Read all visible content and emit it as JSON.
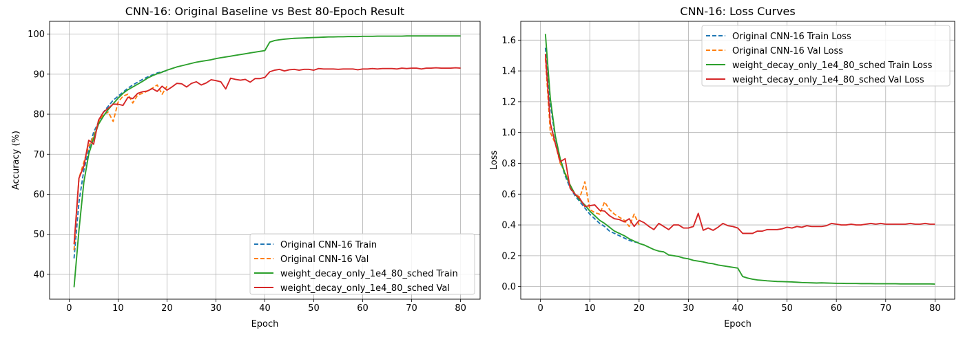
{
  "chart_data": [
    {
      "type": "line",
      "title": "CNN-16: Original Baseline vs Best 80-Epoch Result",
      "xlabel": "Epoch",
      "ylabel": "Accuracy (%)",
      "xlim": [
        -4,
        84
      ],
      "ylim": [
        33.8,
        103.2
      ],
      "xticks": [
        0,
        10,
        20,
        30,
        40,
        50,
        60,
        70,
        80
      ],
      "yticks": [
        40,
        50,
        60,
        70,
        80,
        90,
        100
      ],
      "grid": true,
      "legend_position": "lower-right",
      "series": [
        {
          "name": "Original CNN-16 Train",
          "color": "#1f77b4",
          "dash": true,
          "x": [
            1,
            2,
            3,
            4,
            5,
            6,
            7,
            8,
            9,
            10,
            11,
            12,
            13,
            14,
            15,
            16,
            17,
            18,
            19,
            20
          ],
          "y": [
            44,
            58,
            66,
            71,
            75.5,
            78,
            80.5,
            82,
            83.5,
            84.5,
            85.5,
            86.5,
            87.3,
            88,
            88.7,
            89.3,
            89.8,
            90.3,
            90.6,
            90.9
          ]
        },
        {
          "name": "Original CNN-16 Val",
          "color": "#ff7f0e",
          "dash": true,
          "x": [
            1,
            2,
            3,
            4,
            5,
            6,
            7,
            8,
            9,
            10,
            11,
            12,
            13,
            14,
            15,
            16,
            17,
            18,
            19,
            20
          ],
          "y": [
            46,
            64,
            68,
            72,
            74.5,
            78,
            80,
            80.5,
            78.2,
            83,
            84.5,
            85,
            82.8,
            84.8,
            85.2,
            85.8,
            86.5,
            87.3,
            85,
            87
          ]
        },
        {
          "name": "weight_decay_only_1e4_80_sched Train",
          "color": "#2ca02c",
          "dash": false,
          "x": [
            1,
            2,
            3,
            4,
            5,
            6,
            7,
            8,
            9,
            10,
            11,
            12,
            13,
            14,
            15,
            16,
            17,
            18,
            19,
            20,
            21,
            22,
            23,
            24,
            25,
            26,
            27,
            28,
            29,
            30,
            31,
            32,
            33,
            34,
            35,
            36,
            37,
            38,
            39,
            40,
            41,
            42,
            43,
            44,
            45,
            46,
            47,
            48,
            49,
            50,
            51,
            52,
            53,
            54,
            55,
            56,
            57,
            58,
            59,
            60,
            61,
            62,
            63,
            64,
            65,
            66,
            67,
            68,
            69,
            70,
            71,
            72,
            73,
            74,
            75,
            76,
            77,
            78,
            79,
            80
          ],
          "y": [
            36.8,
            51,
            63,
            70,
            74,
            77.5,
            79.5,
            81.2,
            82.6,
            84,
            85.2,
            86.1,
            86.8,
            87.5,
            88.2,
            89,
            89.6,
            90.1,
            90.5,
            91,
            91.4,
            91.8,
            92.1,
            92.4,
            92.7,
            93,
            93.2,
            93.4,
            93.6,
            93.9,
            94.1,
            94.3,
            94.5,
            94.7,
            94.9,
            95.1,
            95.3,
            95.5,
            95.7,
            95.9,
            98,
            98.4,
            98.6,
            98.75,
            98.85,
            98.95,
            99,
            99.05,
            99.1,
            99.15,
            99.2,
            99.25,
            99.3,
            99.3,
            99.35,
            99.35,
            99.4,
            99.4,
            99.4,
            99.45,
            99.45,
            99.45,
            99.5,
            99.5,
            99.5,
            99.5,
            99.5,
            99.5,
            99.55,
            99.55,
            99.55,
            99.55,
            99.55,
            99.55,
            99.55,
            99.55,
            99.55,
            99.55,
            99.55,
            99.55
          ]
        },
        {
          "name": "weight_decay_only_1e4_80_sched Val",
          "color": "#d62728",
          "dash": false,
          "x": [
            1,
            2,
            3,
            4,
            5,
            6,
            7,
            8,
            9,
            10,
            11,
            12,
            13,
            14,
            15,
            16,
            17,
            18,
            19,
            20,
            21,
            22,
            23,
            24,
            25,
            26,
            27,
            28,
            29,
            30,
            31,
            32,
            33,
            34,
            35,
            36,
            37,
            38,
            39,
            40,
            41,
            42,
            43,
            44,
            45,
            46,
            47,
            48,
            49,
            50,
            51,
            52,
            53,
            54,
            55,
            56,
            57,
            58,
            59,
            60,
            61,
            62,
            63,
            64,
            65,
            66,
            67,
            68,
            69,
            70,
            71,
            72,
            73,
            74,
            75,
            76,
            77,
            78,
            79,
            80
          ],
          "y": [
            47.5,
            64,
            67,
            73.5,
            72.5,
            78.5,
            80.5,
            81.5,
            82.5,
            82.5,
            82.2,
            84.2,
            83.9,
            85.2,
            85.6,
            85.8,
            86.4,
            85.7,
            87,
            86,
            86.8,
            87.7,
            87.6,
            86.8,
            87.7,
            88.1,
            87.3,
            87.8,
            88.6,
            88.4,
            88.1,
            86.3,
            89,
            88.7,
            88.5,
            88.7,
            88,
            88.9,
            88.9,
            89.2,
            90.6,
            91,
            91.2,
            90.8,
            91.1,
            91.2,
            91,
            91.2,
            91.2,
            91,
            91.4,
            91.3,
            91.3,
            91.3,
            91.2,
            91.3,
            91.3,
            91.3,
            91.1,
            91.3,
            91.3,
            91.4,
            91.3,
            91.4,
            91.4,
            91.4,
            91.3,
            91.5,
            91.4,
            91.5,
            91.5,
            91.3,
            91.5,
            91.5,
            91.6,
            91.5,
            91.5,
            91.5,
            91.6,
            91.5
          ]
        }
      ]
    },
    {
      "type": "line",
      "title": "CNN-16: Loss Curves",
      "xlabel": "Epoch",
      "ylabel": "Loss",
      "xlim": [
        -4,
        84
      ],
      "ylim": [
        -0.082,
        1.722
      ],
      "xticks": [
        0,
        10,
        20,
        30,
        40,
        50,
        60,
        70,
        80
      ],
      "yticks": [
        0.0,
        0.2,
        0.4,
        0.6,
        0.8,
        1.0,
        1.2,
        1.4,
        1.6
      ],
      "ytick_labels": [
        "0.0",
        "0.2",
        "0.4",
        "0.6",
        "0.8",
        "1.0",
        "1.2",
        "1.4",
        "1.6"
      ],
      "grid": true,
      "legend_position": "upper-right",
      "series": [
        {
          "name": "Original CNN-16 Train Loss",
          "color": "#1f77b4",
          "dash": true,
          "x": [
            1,
            2,
            3,
            4,
            5,
            6,
            7,
            8,
            9,
            10,
            11,
            12,
            13,
            14,
            15,
            16,
            17,
            18,
            19,
            20
          ],
          "y": [
            1.55,
            1.18,
            0.97,
            0.82,
            0.72,
            0.64,
            0.59,
            0.55,
            0.51,
            0.47,
            0.44,
            0.41,
            0.39,
            0.36,
            0.345,
            0.33,
            0.315,
            0.3,
            0.29,
            0.285
          ]
        },
        {
          "name": "Original CNN-16 Val Loss",
          "color": "#ff7f0e",
          "dash": true,
          "x": [
            1,
            2,
            3,
            4,
            5,
            6,
            7,
            8,
            9,
            10,
            11,
            12,
            13,
            14,
            15,
            16,
            17,
            18,
            19,
            20
          ],
          "y": [
            1.48,
            1.0,
            0.93,
            0.8,
            0.74,
            0.66,
            0.6,
            0.58,
            0.68,
            0.5,
            0.48,
            0.47,
            0.55,
            0.5,
            0.47,
            0.45,
            0.43,
            0.39,
            0.47,
            0.4
          ]
        },
        {
          "name": "weight_decay_only_1e4_80_sched Train Loss",
          "color": "#2ca02c",
          "dash": false,
          "x": [
            1,
            2,
            3,
            4,
            5,
            6,
            7,
            8,
            9,
            10,
            11,
            12,
            13,
            14,
            15,
            16,
            17,
            18,
            19,
            20,
            21,
            22,
            23,
            24,
            25,
            26,
            27,
            28,
            29,
            30,
            31,
            32,
            33,
            34,
            35,
            36,
            37,
            38,
            39,
            40,
            41,
            42,
            43,
            44,
            45,
            46,
            47,
            48,
            49,
            50,
            51,
            52,
            53,
            54,
            55,
            56,
            57,
            58,
            59,
            60,
            61,
            62,
            63,
            64,
            65,
            66,
            67,
            68,
            69,
            70,
            71,
            72,
            73,
            74,
            75,
            76,
            77,
            78,
            79,
            80
          ],
          "y": [
            1.64,
            1.22,
            0.98,
            0.83,
            0.73,
            0.66,
            0.6,
            0.56,
            0.53,
            0.49,
            0.46,
            0.43,
            0.41,
            0.385,
            0.36,
            0.345,
            0.33,
            0.31,
            0.295,
            0.28,
            0.27,
            0.255,
            0.24,
            0.23,
            0.225,
            0.205,
            0.2,
            0.195,
            0.185,
            0.18,
            0.17,
            0.165,
            0.16,
            0.152,
            0.148,
            0.14,
            0.135,
            0.13,
            0.125,
            0.12,
            0.065,
            0.055,
            0.048,
            0.043,
            0.04,
            0.037,
            0.035,
            0.033,
            0.032,
            0.031,
            0.03,
            0.028,
            0.026,
            0.025,
            0.024,
            0.023,
            0.024,
            0.023,
            0.022,
            0.021,
            0.021,
            0.02,
            0.02,
            0.02,
            0.019,
            0.019,
            0.019,
            0.018,
            0.018,
            0.018,
            0.018,
            0.018,
            0.017,
            0.017,
            0.017,
            0.017,
            0.017,
            0.017,
            0.017,
            0.016
          ]
        },
        {
          "name": "weight_decay_only_1e4_80_sched Val Loss",
          "color": "#d62728",
          "dash": false,
          "x": [
            1,
            2,
            3,
            4,
            5,
            6,
            7,
            8,
            9,
            10,
            11,
            12,
            13,
            14,
            15,
            16,
            17,
            18,
            19,
            20,
            21,
            22,
            23,
            24,
            25,
            26,
            27,
            28,
            29,
            30,
            31,
            32,
            33,
            34,
            35,
            36,
            37,
            38,
            39,
            40,
            41,
            42,
            43,
            44,
            45,
            46,
            47,
            48,
            49,
            50,
            51,
            52,
            53,
            54,
            55,
            56,
            57,
            58,
            59,
            60,
            61,
            62,
            63,
            64,
            65,
            66,
            67,
            68,
            69,
            70,
            71,
            72,
            73,
            74,
            75,
            76,
            77,
            78,
            79,
            80
          ],
          "y": [
            1.51,
            1.06,
            0.93,
            0.81,
            0.83,
            0.64,
            0.6,
            0.57,
            0.52,
            0.525,
            0.53,
            0.495,
            0.49,
            0.46,
            0.44,
            0.435,
            0.42,
            0.44,
            0.39,
            0.43,
            0.415,
            0.39,
            0.37,
            0.41,
            0.39,
            0.37,
            0.4,
            0.4,
            0.38,
            0.38,
            0.39,
            0.475,
            0.365,
            0.38,
            0.365,
            0.385,
            0.41,
            0.395,
            0.39,
            0.38,
            0.345,
            0.345,
            0.345,
            0.36,
            0.36,
            0.37,
            0.37,
            0.37,
            0.375,
            0.385,
            0.38,
            0.39,
            0.385,
            0.395,
            0.39,
            0.39,
            0.39,
            0.395,
            0.41,
            0.405,
            0.4,
            0.4,
            0.405,
            0.4,
            0.4,
            0.405,
            0.41,
            0.405,
            0.41,
            0.405,
            0.405,
            0.405,
            0.405,
            0.405,
            0.41,
            0.405,
            0.405,
            0.41,
            0.405,
            0.405
          ]
        }
      ]
    }
  ]
}
